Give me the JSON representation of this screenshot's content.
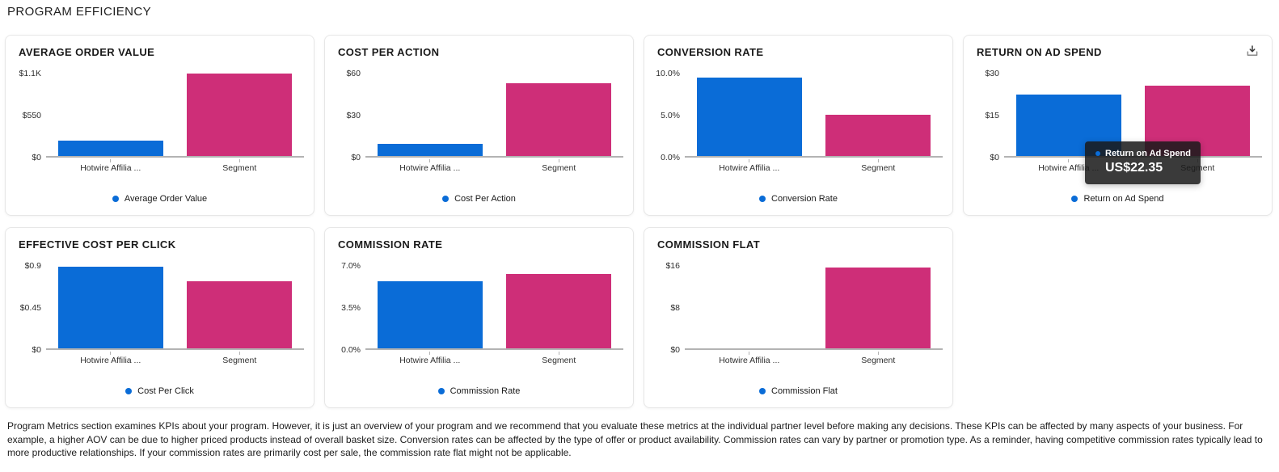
{
  "page": {
    "title": "PROGRAM EFFICIENCY"
  },
  "colors": {
    "partner_series": "#0a6cd7",
    "segment_series": "#ce2e78",
    "axis": "#b3b3b3",
    "tooltip_bg": "rgba(26,26,26,0.86)"
  },
  "icons": {
    "card_action": "download-icon",
    "legend_marker": "dot-icon"
  },
  "chart_data": [
    {
      "type": "bar",
      "title": "AVERAGE ORDER VALUE",
      "legend": "Average Order Value",
      "categories": [
        "Hotwire Affilia ...",
        "Segment"
      ],
      "values": [
        200,
        1100
      ],
      "yticks": [
        "$1.1K",
        "$550",
        "$0"
      ],
      "ymax": 1100,
      "bar_colors": [
        "#0a6cd7",
        "#ce2e78"
      ]
    },
    {
      "type": "bar",
      "title": "COST PER ACTION",
      "legend": "Cost Per Action",
      "categories": [
        "Hotwire Affilia ...",
        "Segment"
      ],
      "values": [
        9,
        53
      ],
      "yticks": [
        "$60",
        "$30",
        "$0"
      ],
      "ymax": 60,
      "bar_colors": [
        "#0a6cd7",
        "#ce2e78"
      ]
    },
    {
      "type": "bar",
      "title": "CONVERSION RATE",
      "legend": "Conversion Rate",
      "categories": [
        "Hotwire Affilia ...",
        "Segment"
      ],
      "values": [
        9.5,
        5.0
      ],
      "yticks": [
        "10.0%",
        "5.0%",
        "0.0%"
      ],
      "ymax": 10,
      "bar_colors": [
        "#0a6cd7",
        "#ce2e78"
      ]
    },
    {
      "type": "bar",
      "title": "RETURN ON AD SPEND",
      "legend": "Return on Ad Spend",
      "categories": [
        "Hotwire Affilia ...",
        "Segment"
      ],
      "values": [
        22.35,
        25.5
      ],
      "yticks": [
        "$30",
        "$15",
        "$0"
      ],
      "ymax": 30,
      "bar_colors": [
        "#0a6cd7",
        "#ce2e78"
      ],
      "show_download": true,
      "tooltip": {
        "series_label": "Return on Ad Spend",
        "value": "US$22.35"
      }
    },
    {
      "type": "bar",
      "title": "EFFECTIVE COST PER CLICK",
      "legend": "Cost Per Click",
      "categories": [
        "Hotwire Affilia ...",
        "Segment"
      ],
      "values": [
        0.89,
        0.73
      ],
      "yticks": [
        "$0.9",
        "$0.45",
        "$0"
      ],
      "ymax": 0.9,
      "bar_colors": [
        "#0a6cd7",
        "#ce2e78"
      ]
    },
    {
      "type": "bar",
      "title": "COMMISSION RATE",
      "legend": "Commission Rate",
      "categories": [
        "Hotwire Affilia ...",
        "Segment"
      ],
      "values": [
        5.7,
        6.3
      ],
      "yticks": [
        "7.0%",
        "3.5%",
        "0.0%"
      ],
      "ymax": 7,
      "bar_colors": [
        "#0a6cd7",
        "#ce2e78"
      ]
    },
    {
      "type": "bar",
      "title": "COMMISSION FLAT",
      "legend": "Commission Flat",
      "categories": [
        "Hotwire Affilia ...",
        "Segment"
      ],
      "values": [
        0,
        15.7
      ],
      "yticks": [
        "$16",
        "$8",
        "$0"
      ],
      "ymax": 16,
      "bar_colors": [
        "#0a6cd7",
        "#ce2e78"
      ]
    }
  ],
  "footer": {
    "text": "Program Metrics section examines KPIs about your program. However, it is just an overview of your program and we recommend that you evaluate these metrics at the individual partner level before making any decisions. These KPIs can be affected by many aspects of your business. For example, a higher AOV can be due to higher priced products instead of overall basket size. Conversion rates can be affected by the type of offer or product availability. Commission rates can vary by partner or promotion type.  As a reminder, having competitive commission rates typically lead to more productive relationships. If your commission rates are primarily cost per sale, the commission rate flat might not be applicable."
  }
}
